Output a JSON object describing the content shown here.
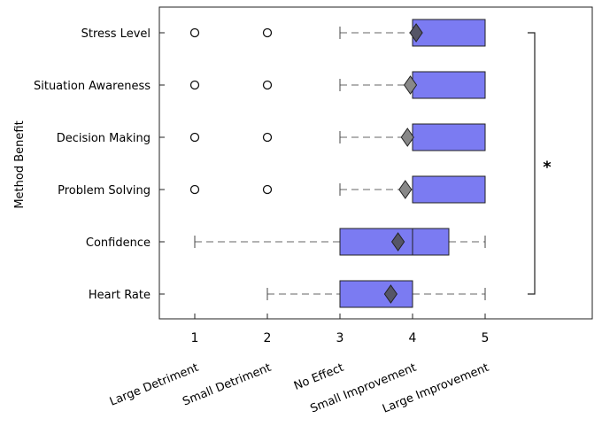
{
  "chart_data": {
    "type": "boxplot",
    "orientation": "horizontal",
    "ylabel": "Method Benefit",
    "xlim": [
      0.55,
      6.5
    ],
    "x_ticks": [
      1,
      2,
      3,
      4,
      5
    ],
    "x_tick_descriptions": [
      "Large Detriment",
      "Small Detriment",
      "No Effect",
      "Small Improvement",
      "Large Improvement"
    ],
    "categories": [
      "Stress Level",
      "Situation Awareness",
      "Decision Making",
      "Problem Solving",
      "Confidence",
      "Heart Rate"
    ],
    "boxes": [
      {
        "category": "Stress Level",
        "whisker_low": 3,
        "q1": 4,
        "median": 5,
        "q3": 5,
        "whisker_high": 5,
        "mean": 4.05,
        "outliers": [
          1,
          2
        ]
      },
      {
        "category": "Situation Awareness",
        "whisker_low": 3,
        "q1": 4,
        "median": 5,
        "q3": 5,
        "whisker_high": 5,
        "mean": 3.97,
        "outliers": [
          1,
          2
        ]
      },
      {
        "category": "Decision Making",
        "whisker_low": 3,
        "q1": 4,
        "median": 5,
        "q3": 5,
        "whisker_high": 5,
        "mean": 3.93,
        "outliers": [
          1,
          2
        ]
      },
      {
        "category": "Problem Solving",
        "whisker_low": 3,
        "q1": 4,
        "median": 5,
        "q3": 5,
        "whisker_high": 5,
        "mean": 3.9,
        "outliers": [
          1,
          2
        ]
      },
      {
        "category": "Confidence",
        "whisker_low": 1,
        "q1": 3,
        "median": 4,
        "q3": 4.5,
        "whisker_high": 5,
        "mean": 3.8,
        "outliers": []
      },
      {
        "category": "Heart Rate",
        "whisker_low": 2,
        "q1": 3,
        "median": 4,
        "q3": 4,
        "whisker_high": 5,
        "mean": 3.7,
        "outliers": []
      }
    ],
    "significance": {
      "label": "*",
      "from": "Stress Level",
      "to": "Heart Rate"
    },
    "colors": {
      "box_fill": "#7b7bf2",
      "mean_marker": "#555566",
      "mean_marker_light": "#888888",
      "whisker": "#666666"
    },
    "grid": false,
    "legend": "none"
  }
}
